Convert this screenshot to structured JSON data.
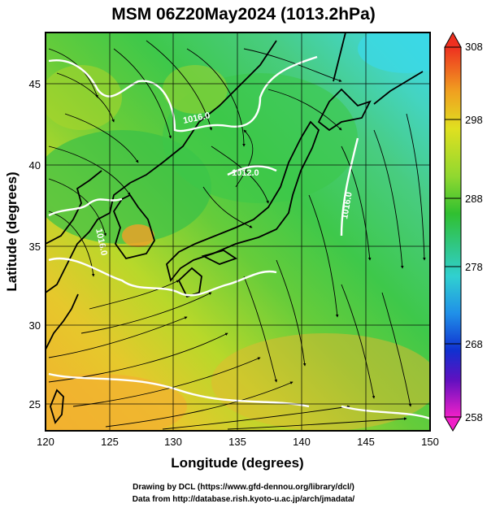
{
  "title": "MSM 06Z20May2024 (1013.2hPa)",
  "xlabel": "Longitude (degrees)",
  "ylabel": "Latitude  (degrees)",
  "x_ticks": [
    "120",
    "125",
    "130",
    "135",
    "140",
    "145",
    "150"
  ],
  "y_ticks": [
    "25",
    "30",
    "35",
    "40",
    "45"
  ],
  "colorbar": {
    "min": "258",
    "max": "308",
    "ticks": [
      "308",
      "298",
      "288",
      "278",
      "268",
      "258"
    ]
  },
  "contour_labels": [
    "1016.0",
    "1012.0",
    "1016.0",
    "1016.0"
  ],
  "credits": {
    "line1": "Drawing by DCL (https://www.gfd-dennou.org/library/dcl/)",
    "line2": "Data from http://database.rish.kyoto-u.ac.jp/arch/jmadata/"
  },
  "colors": {
    "green": "#3cc84a",
    "yellow_green": "#a8d42c",
    "orange": "#f0a028",
    "cyan": "#40d8d0",
    "land_contour": "#000000",
    "isobar": "#ffffff"
  }
}
